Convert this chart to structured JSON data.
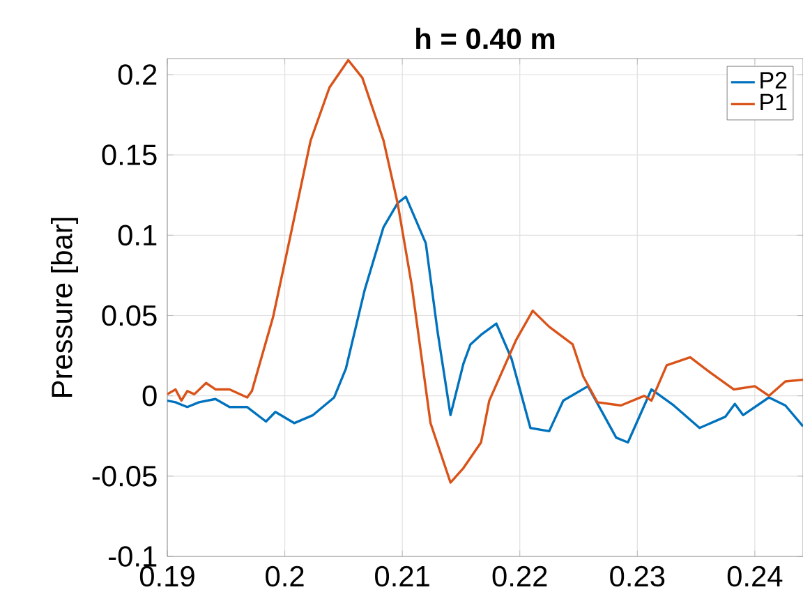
{
  "chart_data": {
    "type": "line",
    "title": "h = 0.40 m",
    "ylabel": "Pressure [bar]",
    "xlim": [
      0.19,
      0.2441
    ],
    "ylim": [
      -0.1,
      0.21
    ],
    "xticks": [
      0.19,
      0.2,
      0.21,
      0.22,
      0.23,
      0.24
    ],
    "yticks": [
      -0.1,
      -0.05,
      0,
      0.05,
      0.1,
      0.15,
      0.2
    ],
    "grid": true,
    "legend": "top right",
    "marker": "none",
    "line_style": "solid",
    "series": [
      {
        "name": "P2",
        "color": "#0072bd",
        "x": [
          0.19,
          0.1907,
          0.1917,
          0.1927,
          0.1941,
          0.1953,
          0.1968,
          0.1984,
          0.1992,
          0.2008,
          0.2024,
          0.2042,
          0.2052,
          0.2068,
          0.2084,
          0.2096,
          0.2103,
          0.212,
          0.213,
          0.2141,
          0.2152,
          0.2158,
          0.2167,
          0.218,
          0.2193,
          0.2209,
          0.2225,
          0.2237,
          0.2258,
          0.2282,
          0.2292,
          0.2312,
          0.2331,
          0.2353,
          0.2375,
          0.2383,
          0.239,
          0.2412,
          0.2426,
          0.2441
        ],
        "values": [
          -0.003,
          -0.004,
          -0.007,
          -0.004,
          -0.002,
          -0.007,
          -0.007,
          -0.016,
          -0.01,
          -0.017,
          -0.012,
          -0.001,
          0.017,
          0.066,
          0.105,
          0.12,
          0.124,
          0.095,
          0.04,
          -0.012,
          0.02,
          0.032,
          0.038,
          0.045,
          0.023,
          -0.02,
          -0.022,
          -0.003,
          0.006,
          -0.026,
          -0.029,
          0.004,
          -0.006,
          -0.02,
          -0.013,
          -0.005,
          -0.012,
          -0.001,
          -0.006,
          -0.019
        ]
      },
      {
        "name": "P1",
        "color": "#d95319",
        "x": [
          0.19,
          0.1907,
          0.1912,
          0.1917,
          0.1923,
          0.1933,
          0.1941,
          0.1953,
          0.1968,
          0.1972,
          0.199,
          0.2002,
          0.2022,
          0.2038,
          0.2054,
          0.2066,
          0.2084,
          0.2096,
          0.2108,
          0.2124,
          0.2141,
          0.2152,
          0.2167,
          0.2174,
          0.2197,
          0.2211,
          0.2225,
          0.2245,
          0.2254,
          0.2266,
          0.2286,
          0.2306,
          0.2312,
          0.2325,
          0.2345,
          0.2363,
          0.2382,
          0.24,
          0.2412,
          0.2426,
          0.2441
        ],
        "values": [
          0.001,
          0.004,
          -0.003,
          0.003,
          0.001,
          0.008,
          0.004,
          0.004,
          -0.001,
          0.003,
          0.049,
          0.09,
          0.159,
          0.192,
          0.209,
          0.198,
          0.159,
          0.12,
          0.069,
          -0.017,
          -0.054,
          -0.045,
          -0.029,
          -0.003,
          0.035,
          0.053,
          0.043,
          0.032,
          0.012,
          -0.004,
          -0.006,
          0,
          -0.003,
          0.019,
          0.024,
          0.014,
          0.004,
          0.006,
          0,
          0.009,
          0.01
        ]
      }
    ]
  }
}
